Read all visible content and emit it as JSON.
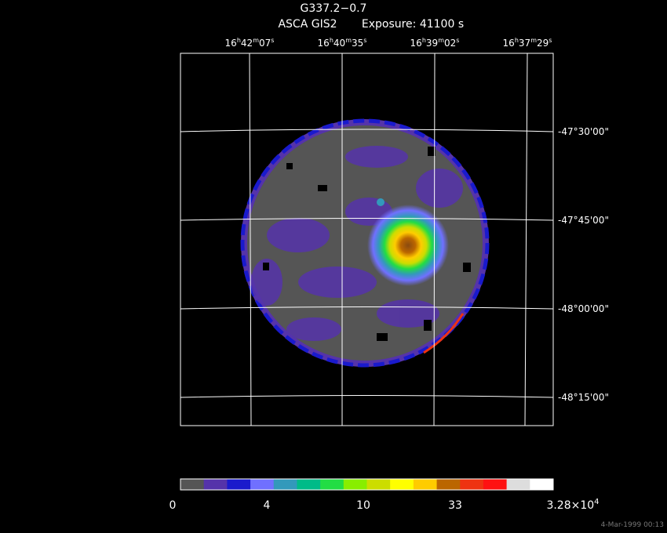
{
  "header": {
    "title": "G337.2−0.7",
    "instrument": "ASCA GIS2",
    "exposure": "Exposure: 41100 s"
  },
  "ra_labels": [
    [
      "16",
      "h",
      "42",
      "m",
      "07",
      "s"
    ],
    [
      "16",
      "h",
      "40",
      "m",
      "35",
      "s"
    ],
    [
      "16",
      "h",
      "39",
      "m",
      "02",
      "s"
    ],
    [
      "16",
      "h",
      "37",
      "m",
      "29",
      "s"
    ]
  ],
  "dec_labels": [
    "-47°30'00\"",
    "-47°45'00\"",
    "-48°00'00\"",
    "-48°15'00\""
  ],
  "colorbar": {
    "colors": [
      "#555555",
      "#5533aa",
      "#1a1acc",
      "#7070ff",
      "#3399bb",
      "#00bb88",
      "#22dd44",
      "#88ee00",
      "#ccdd00",
      "#ffff00",
      "#ffcc00",
      "#bb6600",
      "#ee3311",
      "#ff1111",
      "#dddddd",
      "#ffffff"
    ],
    "labels": [
      [
        "0"
      ],
      [
        "4"
      ],
      [
        "10"
      ],
      [
        "33"
      ],
      [
        "3.28×10",
        "4"
      ]
    ]
  },
  "timestamp": "4-Mar-1999 00:13"
}
